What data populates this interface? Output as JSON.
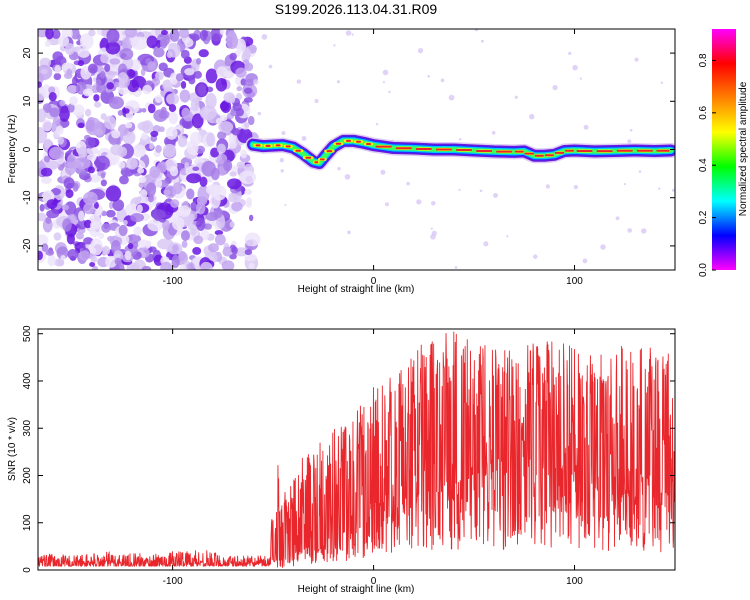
{
  "title": "S199.2026.113.04.31.R09",
  "colors": {
    "line": "#e8262b",
    "ridge": "#e8262b",
    "noise_dark": "#6a17e0",
    "noise_light": "#d9c8f5"
  },
  "chart_data": [
    {
      "type": "heatmap",
      "title": "S199.2026.113.04.31.R09",
      "xlabel": "Height of straight line (km)",
      "ylabel": "Frequency (Hz)",
      "xlim": [
        -167,
        150
      ],
      "ylim": [
        -25,
        25
      ],
      "xticks": [
        -100,
        0,
        100
      ],
      "xtick_labels": [
        "-100",
        "0",
        "100"
      ],
      "yticks": [
        -20,
        -10,
        0,
        10,
        20
      ],
      "ytick_labels": [
        "-20",
        "-10",
        "0",
        "10",
        "20"
      ],
      "noise_region_x": [
        -167,
        -60
      ],
      "ridge": {
        "x": [
          -60,
          -55,
          -50,
          -45,
          -40,
          -35,
          -30,
          -27,
          -24,
          -20,
          -15,
          -10,
          -5,
          0,
          10,
          20,
          30,
          40,
          50,
          60,
          70,
          75,
          80,
          85,
          90,
          95,
          100,
          110,
          120,
          130,
          140,
          148
        ],
        "y": [
          1.0,
          0.7,
          0.8,
          0.9,
          0.4,
          -0.9,
          -2.5,
          -2.8,
          -1.3,
          0.6,
          1.8,
          1.8,
          1.4,
          0.9,
          0.3,
          0.2,
          0.0,
          0.0,
          -0.2,
          -0.4,
          -0.5,
          -0.4,
          -1.3,
          -1.3,
          -1.1,
          -0.3,
          -0.2,
          -0.4,
          -0.3,
          -0.2,
          -0.3,
          -0.2
        ]
      },
      "colorbar": {
        "label": "Normalized spectral amplitude",
        "range": [
          0.0,
          0.92
        ],
        "ticks": [
          0.0,
          0.2,
          0.4,
          0.6,
          0.8
        ],
        "tick_labels": [
          "0.0",
          "0.2",
          "0.4",
          "0.6",
          "0.8"
        ],
        "colormap": [
          "#ff00ff",
          "#0000ff",
          "#00ffff",
          "#00ff00",
          "#ffff00",
          "#ff8000",
          "#ff0000",
          "#ff00ff"
        ]
      }
    },
    {
      "type": "line",
      "xlabel": "Height of straight line (km)",
      "ylabel": "SNR (10 * v/v)",
      "xlim": [
        -167,
        150
      ],
      "ylim": [
        0,
        510
      ],
      "xticks": [
        -100,
        0,
        100
      ],
      "xtick_labels": [
        "-100",
        "0",
        "100"
      ],
      "yticks": [
        0,
        100,
        200,
        300,
        400,
        500
      ],
      "ytick_labels": [
        "0",
        "100",
        "200",
        "300",
        "400",
        "500"
      ],
      "series": [
        {
          "name": "SNR",
          "x": [
            -167,
            -150,
            -130,
            -110,
            -90,
            -70,
            -52,
            -48,
            -46,
            -44,
            -40,
            -30,
            -20,
            -10,
            0,
            10,
            20,
            30,
            40,
            50,
            60,
            70,
            80,
            90,
            100,
            110,
            120,
            130,
            140,
            150
          ],
          "baseline": [
            8,
            8,
            8,
            8,
            8,
            8,
            8,
            22,
            25,
            28,
            35,
            50,
            70,
            100,
            140,
            180,
            200,
            210,
            215,
            215,
            215,
            215,
            215,
            210,
            205,
            200,
            200,
            195,
            190,
            190
          ],
          "envelope": [
            35,
            32,
            40,
            33,
            48,
            30,
            30,
            280,
            140,
            170,
            220,
            260,
            300,
            330,
            400,
            420,
            470,
            495,
            505,
            480,
            490,
            470,
            480,
            490,
            470,
            460,
            480,
            470,
            470,
            470
          ]
        }
      ]
    }
  ]
}
